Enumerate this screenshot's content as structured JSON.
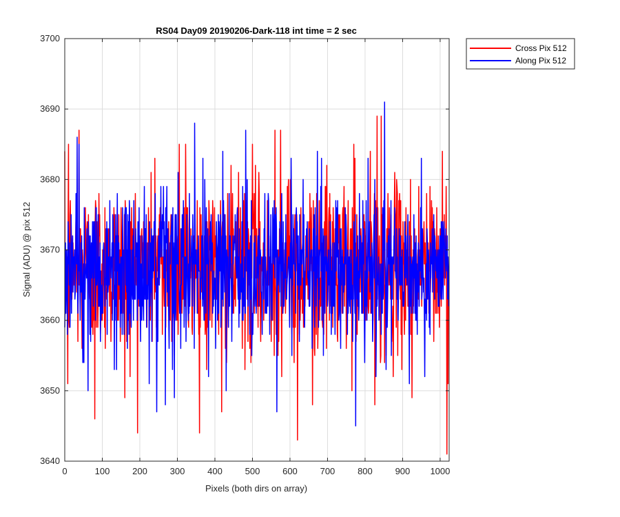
{
  "chart_data": {
    "type": "line",
    "title": "RS04 Day09 20190206-Dark-118 int time = 2 sec",
    "xlabel": "Pixels (both dirs on array)",
    "ylabel": "Signal (ADU) @ pix 512",
    "xlim": [
      0,
      1024
    ],
    "ylim": [
      3640,
      3700
    ],
    "xticks": [
      0,
      100,
      200,
      300,
      400,
      500,
      600,
      700,
      800,
      900,
      1000
    ],
    "yticks": [
      3640,
      3650,
      3660,
      3670,
      3680,
      3690,
      3700
    ],
    "grid": true,
    "legend_position": "outside-top-right",
    "noise_points_per_series": 1024,
    "series": [
      {
        "name": "Cross Pix 512",
        "color": "#ff0000",
        "mean": 3667.5,
        "std": 6.0,
        "min": 3641,
        "max": 3689,
        "notable_points": [
          {
            "x": 8,
            "y": 3651
          },
          {
            "x": 10,
            "y": 3685
          },
          {
            "x": 38,
            "y": 3687
          },
          {
            "x": 80,
            "y": 3646
          },
          {
            "x": 160,
            "y": 3649
          },
          {
            "x": 240,
            "y": 3683
          },
          {
            "x": 305,
            "y": 3685
          },
          {
            "x": 322,
            "y": 3685
          },
          {
            "x": 418,
            "y": 3647
          },
          {
            "x": 500,
            "y": 3685
          },
          {
            "x": 560,
            "y": 3687
          },
          {
            "x": 575,
            "y": 3687
          },
          {
            "x": 620,
            "y": 3643
          },
          {
            "x": 660,
            "y": 3648
          },
          {
            "x": 770,
            "y": 3685
          },
          {
            "x": 826,
            "y": 3648
          },
          {
            "x": 832,
            "y": 3689
          },
          {
            "x": 843,
            "y": 3689
          },
          {
            "x": 925,
            "y": 3649
          },
          {
            "x": 1006,
            "y": 3684
          },
          {
            "x": 1018,
            "y": 3641
          }
        ]
      },
      {
        "name": "Along Pix 512",
        "color": "#0000ff",
        "mean": 3667.0,
        "std": 5.5,
        "min": 3645,
        "max": 3691,
        "notable_points": [
          {
            "x": 38,
            "y": 3685
          },
          {
            "x": 62,
            "y": 3650
          },
          {
            "x": 245,
            "y": 3647
          },
          {
            "x": 268,
            "y": 3648
          },
          {
            "x": 368,
            "y": 3683
          },
          {
            "x": 430,
            "y": 3650
          },
          {
            "x": 482,
            "y": 3687
          },
          {
            "x": 565,
            "y": 3647
          },
          {
            "x": 603,
            "y": 3683
          },
          {
            "x": 775,
            "y": 3645
          },
          {
            "x": 808,
            "y": 3683
          },
          {
            "x": 852,
            "y": 3691
          },
          {
            "x": 918,
            "y": 3651
          },
          {
            "x": 950,
            "y": 3683
          }
        ]
      }
    ]
  }
}
